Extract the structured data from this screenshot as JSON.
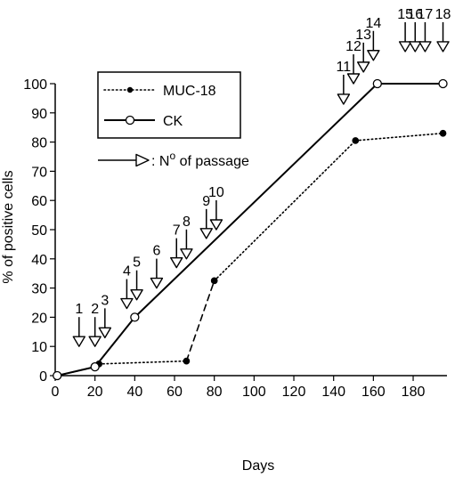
{
  "chart_data": {
    "type": "line",
    "xlabel": "Days",
    "ylabel": "% of positive cells",
    "xlim": [
      0,
      197
    ],
    "ylim": [
      0,
      100
    ],
    "xticks": [
      0,
      20,
      40,
      60,
      80,
      100,
      120,
      140,
      160,
      180
    ],
    "yticks": [
      0,
      10,
      20,
      30,
      40,
      50,
      60,
      70,
      80,
      90,
      100
    ],
    "legend": {
      "position": "top-left",
      "entries": [
        {
          "label": "MUC-18",
          "style": "dotted",
          "marker": "filled-circle"
        },
        {
          "label": "CK",
          "style": "solid",
          "marker": "open-circle"
        }
      ],
      "arrow_label_prefix": ": N",
      "arrow_label_superscript": "o",
      "arrow_label_suffix": " of passage"
    },
    "series": [
      {
        "name": "MUC-18",
        "points": [
          [
            1,
            0
          ],
          [
            20,
            3
          ],
          [
            22,
            4
          ],
          [
            66,
            5
          ],
          [
            80,
            32.5
          ],
          [
            151,
            80.5
          ],
          [
            195,
            83
          ]
        ],
        "segment_styles": [
          "dotted",
          "dotted",
          "dotted",
          "dashed",
          "dotted",
          "dotted"
        ]
      },
      {
        "name": "CK",
        "points": [
          [
            1,
            0
          ],
          [
            20,
            3
          ],
          [
            40,
            20
          ],
          [
            162,
            100
          ],
          [
            195,
            100
          ]
        ],
        "segment_styles": [
          "solid",
          "solid",
          "solid",
          "solid"
        ]
      }
    ],
    "passages": [
      {
        "label": "1",
        "x": 12,
        "y": 10
      },
      {
        "label": "2",
        "x": 20,
        "y": 10
      },
      {
        "label": "3",
        "x": 25,
        "y": 13
      },
      {
        "label": "4",
        "x": 36,
        "y": 23
      },
      {
        "label": "5",
        "x": 41,
        "y": 26
      },
      {
        "label": "6",
        "x": 51,
        "y": 30
      },
      {
        "label": "7",
        "x": 61,
        "y": 37
      },
      {
        "label": "8",
        "x": 66,
        "y": 40
      },
      {
        "label": "9",
        "x": 76,
        "y": 47
      },
      {
        "label": "10",
        "x": 81,
        "y": 50
      },
      {
        "label": "11",
        "x": 145,
        "y": 93
      },
      {
        "label": "12",
        "x": 150,
        "y": 100
      },
      {
        "label": "13",
        "x": 155,
        "y": 104
      },
      {
        "label": "14",
        "x": 160,
        "y": 108
      },
      {
        "label": "15",
        "x": 176,
        "y": 111
      },
      {
        "label": "16",
        "x": 181,
        "y": 111
      },
      {
        "label": "17",
        "x": 186,
        "y": 111
      },
      {
        "label": "18",
        "x": 195,
        "y": 111
      }
    ]
  }
}
